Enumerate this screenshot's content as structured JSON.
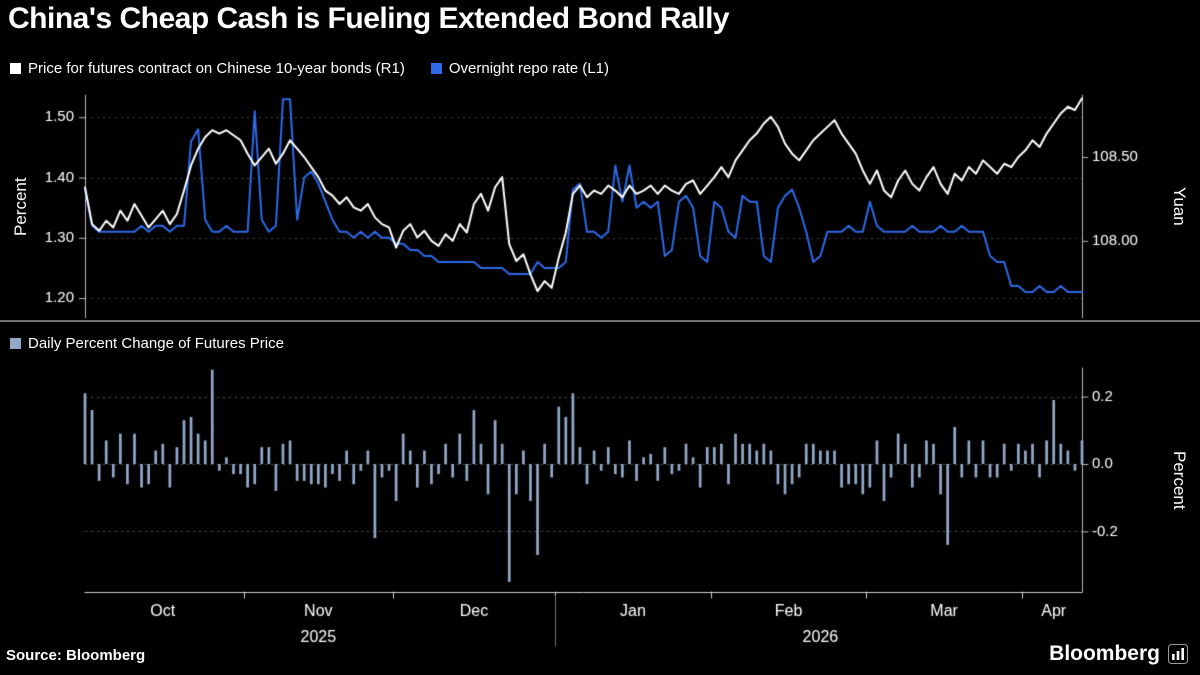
{
  "header": {
    "title": "China's Cheap Cash is Fueling Extended Bond Rally"
  },
  "legend_top": [
    {
      "label": "Price for futures contract on Chinese 10-year bonds (R1)",
      "color": "#ffffff"
    },
    {
      "label": "Overnight repo rate (L1)",
      "color": "#2d6ae8"
    }
  ],
  "legend_bottom": [
    {
      "label": "Daily Percent Change of Futures Price",
      "color": "#93a8c9"
    }
  ],
  "footer": {
    "source": "Source: Bloomberg",
    "brand": "Bloomberg"
  },
  "x_axis": {
    "count": 142,
    "months": [
      {
        "label": "Oct",
        "start": 0
      },
      {
        "label": "Nov",
        "start": 23
      },
      {
        "label": "Dec",
        "start": 44
      },
      {
        "label": "Jan",
        "start": 67
      },
      {
        "label": "Feb",
        "start": 89
      },
      {
        "label": "Mar",
        "start": 111
      },
      {
        "label": "Apr",
        "start": 133
      }
    ],
    "years": [
      {
        "label": "2025",
        "span": [
          0,
          66
        ]
      },
      {
        "label": "2026",
        "span": [
          67,
          141
        ]
      }
    ],
    "year_divider_index": 67
  },
  "chart_data": [
    {
      "type": "line",
      "grid": "dotted",
      "left_axis": {
        "label": "Percent",
        "ticks": [
          1.2,
          1.3,
          1.4,
          1.5
        ],
        "tick_labels": [
          "1.20",
          "1.30",
          "1.40",
          "1.50"
        ],
        "range": [
          1.167,
          1.537
        ]
      },
      "right_axis": {
        "label": "Yuan",
        "ticks": [
          108.0,
          108.5
        ],
        "tick_labels": [
          "108.00",
          "108.50"
        ],
        "range": [
          107.54,
          108.87
        ]
      },
      "series": [
        {
          "name": "Price for futures contract on Chinese 10-year bonds (R1)",
          "axis": "right",
          "color": "#ffffff",
          "values": [
            108.32,
            108.1,
            108.06,
            108.12,
            108.08,
            108.18,
            108.12,
            108.22,
            108.15,
            108.08,
            108.13,
            108.18,
            108.1,
            108.16,
            108.3,
            108.45,
            108.55,
            108.62,
            108.66,
            108.64,
            108.66,
            108.63,
            108.6,
            108.52,
            108.45,
            108.5,
            108.55,
            108.46,
            108.52,
            108.6,
            108.55,
            108.5,
            108.44,
            108.38,
            108.3,
            108.27,
            108.22,
            108.26,
            108.2,
            108.18,
            108.22,
            108.14,
            108.1,
            108.08,
            107.96,
            108.06,
            108.1,
            108.02,
            108.06,
            108.0,
            107.97,
            108.04,
            108.0,
            108.1,
            108.05,
            108.22,
            108.28,
            108.18,
            108.32,
            108.38,
            107.98,
            107.88,
            107.92,
            107.8,
            107.7,
            107.76,
            107.72,
            107.9,
            108.05,
            108.28,
            108.33,
            108.26,
            108.3,
            108.28,
            108.33,
            108.3,
            108.26,
            108.33,
            108.28,
            108.3,
            108.33,
            108.28,
            108.33,
            108.3,
            108.28,
            108.34,
            108.36,
            108.28,
            108.33,
            108.38,
            108.44,
            108.38,
            108.48,
            108.54,
            108.6,
            108.64,
            108.7,
            108.74,
            108.68,
            108.58,
            108.52,
            108.48,
            108.54,
            108.6,
            108.64,
            108.68,
            108.72,
            108.64,
            108.58,
            108.52,
            108.42,
            108.34,
            108.42,
            108.3,
            108.26,
            108.36,
            108.42,
            108.34,
            108.3,
            108.38,
            108.44,
            108.34,
            108.28,
            108.4,
            108.36,
            108.44,
            108.4,
            108.48,
            108.44,
            108.4,
            108.46,
            108.44,
            108.5,
            108.54,
            108.6,
            108.56,
            108.64,
            108.7,
            108.76,
            108.8,
            108.78,
            108.85
          ]
        },
        {
          "name": "Overnight repo rate (L1)",
          "axis": "left",
          "color": "#2d6ae8",
          "values": [
            1.38,
            1.32,
            1.31,
            1.31,
            1.31,
            1.31,
            1.31,
            1.31,
            1.32,
            1.31,
            1.32,
            1.32,
            1.31,
            1.32,
            1.32,
            1.46,
            1.48,
            1.33,
            1.31,
            1.31,
            1.32,
            1.31,
            1.31,
            1.31,
            1.51,
            1.33,
            1.31,
            1.32,
            1.53,
            1.53,
            1.33,
            1.4,
            1.41,
            1.39,
            1.36,
            1.33,
            1.31,
            1.31,
            1.3,
            1.31,
            1.3,
            1.31,
            1.3,
            1.3,
            1.29,
            1.29,
            1.28,
            1.28,
            1.27,
            1.27,
            1.26,
            1.26,
            1.26,
            1.26,
            1.26,
            1.26,
            1.25,
            1.25,
            1.25,
            1.25,
            1.24,
            1.24,
            1.24,
            1.24,
            1.26,
            1.25,
            1.25,
            1.25,
            1.26,
            1.38,
            1.39,
            1.31,
            1.31,
            1.3,
            1.31,
            1.42,
            1.36,
            1.42,
            1.35,
            1.36,
            1.35,
            1.36,
            1.27,
            1.28,
            1.36,
            1.37,
            1.35,
            1.27,
            1.26,
            1.36,
            1.35,
            1.31,
            1.3,
            1.37,
            1.36,
            1.36,
            1.27,
            1.26,
            1.35,
            1.37,
            1.38,
            1.35,
            1.31,
            1.26,
            1.27,
            1.31,
            1.31,
            1.31,
            1.32,
            1.31,
            1.31,
            1.36,
            1.32,
            1.31,
            1.31,
            1.31,
            1.31,
            1.32,
            1.31,
            1.31,
            1.31,
            1.32,
            1.31,
            1.31,
            1.32,
            1.31,
            1.31,
            1.31,
            1.27,
            1.26,
            1.26,
            1.22,
            1.22,
            1.21,
            1.21,
            1.22,
            1.21,
            1.21,
            1.22,
            1.21,
            1.21,
            1.21
          ]
        }
      ]
    },
    {
      "type": "bar",
      "name": "Daily Percent Change of Futures Price",
      "color": "#93a8c9",
      "right_axis": {
        "label": "Percent",
        "ticks": [
          -0.2,
          0.0,
          0.2
        ],
        "tick_labels": [
          "-0.2",
          "0.0",
          "0.2"
        ],
        "range": [
          -0.38,
          0.285
        ]
      },
      "values": [
        0.21,
        0.16,
        -0.05,
        0.07,
        -0.04,
        0.09,
        -0.06,
        0.09,
        -0.07,
        -0.06,
        0.04,
        0.06,
        -0.07,
        0.05,
        0.13,
        0.14,
        0.09,
        0.07,
        0.28,
        -0.02,
        0.02,
        -0.03,
        -0.03,
        -0.07,
        -0.06,
        0.05,
        0.05,
        -0.08,
        0.06,
        0.07,
        -0.05,
        -0.05,
        -0.06,
        -0.06,
        -0.07,
        -0.03,
        -0.05,
        0.04,
        -0.06,
        -0.02,
        0.04,
        -0.22,
        -0.04,
        -0.02,
        -0.11,
        0.09,
        0.04,
        -0.07,
        0.04,
        -0.06,
        -0.03,
        0.06,
        -0.04,
        0.09,
        -0.05,
        0.16,
        0.06,
        -0.09,
        0.13,
        0.06,
        -0.35,
        -0.09,
        0.04,
        -0.11,
        -0.27,
        0.06,
        -0.04,
        0.17,
        0.14,
        0.21,
        0.05,
        -0.06,
        0.04,
        -0.02,
        0.05,
        -0.03,
        -0.04,
        0.07,
        -0.05,
        0.02,
        0.03,
        -0.05,
        0.05,
        -0.03,
        -0.02,
        0.06,
        0.02,
        -0.07,
        0.05,
        0.05,
        0.06,
        -0.06,
        0.09,
        0.06,
        0.06,
        0.04,
        0.06,
        0.04,
        -0.06,
        -0.09,
        -0.06,
        -0.04,
        0.06,
        0.06,
        0.04,
        0.04,
        0.04,
        -0.07,
        -0.06,
        -0.06,
        -0.09,
        -0.07,
        0.07,
        -0.11,
        -0.04,
        0.09,
        0.06,
        -0.07,
        -0.04,
        0.07,
        0.06,
        -0.09,
        -0.24,
        0.11,
        -0.04,
        0.07,
        -0.04,
        0.07,
        -0.04,
        -0.04,
        0.06,
        -0.02,
        0.06,
        0.04,
        0.06,
        -0.04,
        0.07,
        0.19,
        0.06,
        0.04,
        -0.02,
        0.07
      ]
    }
  ]
}
